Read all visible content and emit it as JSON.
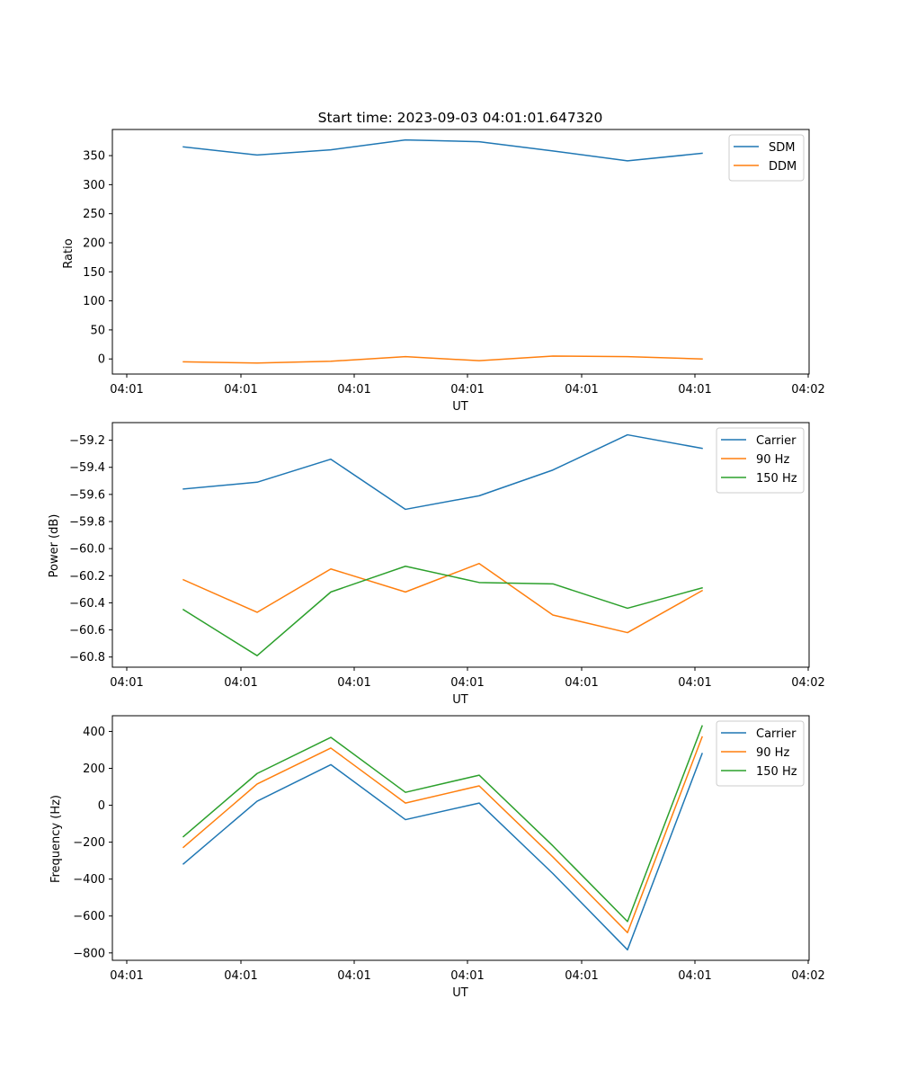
{
  "chart_data": [
    {
      "type": "line",
      "title": "Start time: 2023-09-03 04:01:01.647320",
      "xlabel": "UT",
      "ylabel": "Ratio",
      "x_tick_labels": [
        "04:01",
        "04:01",
        "04:01",
        "04:01",
        "04:01",
        "04:01",
        "04:02"
      ],
      "ylim": [
        -26,
        395
      ],
      "y_ticks": [
        0,
        50,
        100,
        150,
        200,
        250,
        300,
        350
      ],
      "legend_position": "top-right",
      "series": [
        {
          "name": "SDM",
          "color": "#1f77b4",
          "values": [
            365,
            351,
            360,
            377,
            374,
            358,
            341,
            354
          ]
        },
        {
          "name": "DDM",
          "color": "#ff7f0e",
          "values": [
            -5,
            -7,
            -4,
            4,
            -3,
            5,
            4,
            0
          ]
        }
      ]
    },
    {
      "type": "line",
      "title": "",
      "xlabel": "UT",
      "ylabel": "Power (dB)",
      "x_tick_labels": [
        "04:01",
        "04:01",
        "04:01",
        "04:01",
        "04:01",
        "04:01",
        "04:02"
      ],
      "ylim": [
        -60.875,
        -59.07
      ],
      "y_ticks": [
        -60.8,
        -60.6,
        -60.4,
        -60.2,
        -60.0,
        -59.8,
        -59.6,
        -59.4,
        -59.2
      ],
      "y_tick_labels": [
        "−60.8",
        "−60.6",
        "−60.4",
        "−60.2",
        "−60.0",
        "−59.8",
        "−59.6",
        "−59.4",
        "−59.2"
      ],
      "legend_position": "top-right",
      "series": [
        {
          "name": "Carrier",
          "color": "#1f77b4",
          "values": [
            -59.56,
            -59.51,
            -59.34,
            -59.71,
            -59.61,
            -59.42,
            -59.16,
            -59.26
          ]
        },
        {
          "name": "90 Hz",
          "color": "#ff7f0e",
          "values": [
            -60.23,
            -60.47,
            -60.15,
            -60.32,
            -60.11,
            -60.49,
            -60.62,
            -60.31
          ]
        },
        {
          "name": "150 Hz",
          "color": "#2ca02c",
          "values": [
            -60.45,
            -60.79,
            -60.32,
            -60.13,
            -60.25,
            -60.26,
            -60.44,
            -60.29
          ]
        }
      ]
    },
    {
      "type": "line",
      "title": "",
      "xlabel": "UT",
      "ylabel": "Frequency (Hz)",
      "x_tick_labels": [
        "04:01",
        "04:01",
        "04:01",
        "04:01",
        "04:01",
        "04:01",
        "04:02"
      ],
      "ylim": [
        -840,
        485
      ],
      "y_ticks": [
        -800,
        -600,
        -400,
        -200,
        0,
        200,
        400
      ],
      "y_tick_labels": [
        "−800",
        "−600",
        "−400",
        "−200",
        "0",
        "200",
        "400"
      ],
      "legend_position": "top-right",
      "series": [
        {
          "name": "Carrier",
          "color": "#1f77b4",
          "values": [
            -318,
            22,
            220,
            -78,
            12,
            -370,
            -783,
            280
          ]
        },
        {
          "name": "90 Hz",
          "color": "#ff7f0e",
          "values": [
            -228,
            115,
            310,
            12,
            105,
            -280,
            -690,
            370
          ]
        },
        {
          "name": "150 Hz",
          "color": "#2ca02c",
          "values": [
            -170,
            172,
            368,
            70,
            163,
            -220,
            -630,
            430
          ]
        }
      ]
    }
  ]
}
